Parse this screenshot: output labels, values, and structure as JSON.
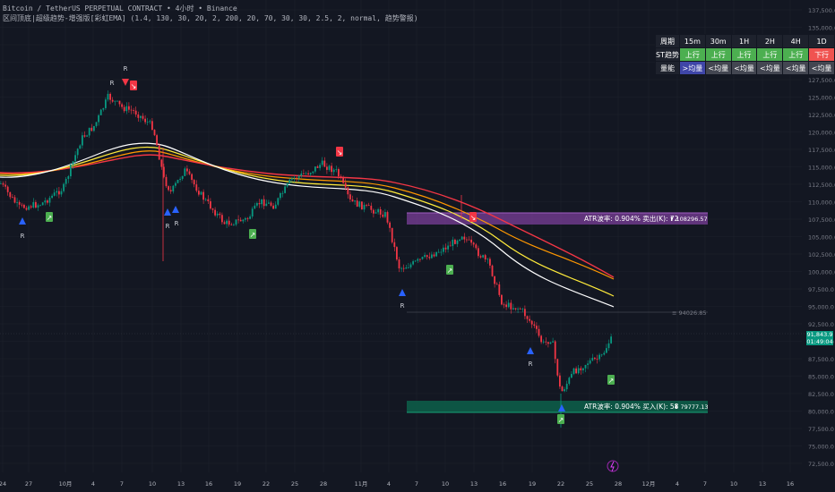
{
  "header": {
    "line1": "Bitcoin / TetherUS PERPETUAL CONTRACT • 4小时 • Binance",
    "line2": "区间顶底|超级趋势-增强版[彩虹EMA] (1.4, 130, 30, 20, 2, 200, 20, 70, 30, 30, 2.5, 2, normal, 趋势警报)"
  },
  "trend_table": {
    "header": [
      "周期",
      "15m",
      "30m",
      "1H",
      "2H",
      "4H",
      "1D"
    ],
    "st_label": "ST趋势",
    "st_values": [
      "上行",
      "上行",
      "上行",
      "上行",
      "上行",
      "下行"
    ],
    "vol_label": "量能",
    "vol_values": [
      ">均量",
      "<均量",
      "<均量",
      "<均量",
      "<均量",
      "<均量"
    ]
  },
  "zones": {
    "sell_text": "ATR波率: 0.904% 卖出(K): 72",
    "sell_price": "⬆ 108296.57",
    "buy_text": "ATR波率: 0.904% 买入(K): 58",
    "buy_price": "⬇ 79777.13",
    "mid_label": "≡ 94026.85"
  },
  "current_price": {
    "value": "91,843.9",
    "countdown": "01:49:04"
  },
  "y_axis": [
    "137,500.0",
    "135,000.0",
    "132,500.0",
    "130,000.0",
    "127,500.0",
    "125,000.0",
    "122,500.0",
    "120,000.0",
    "117,500.0",
    "115,000.0",
    "112,500.0",
    "110,000.0",
    "107,500.0",
    "105,000.0",
    "102,500.0",
    "100,000.0",
    "97,500.0",
    "95,000.0",
    "92,500.0",
    "90,000.0",
    "87,500.0",
    "85,000.0",
    "82,500.0",
    "80,000.0",
    "77,500.0",
    "75,000.0",
    "72,500.0"
  ],
  "x_axis": [
    "24",
    "27",
    "10月",
    "4",
    "7",
    "10",
    "13",
    "16",
    "19",
    "22",
    "25",
    "28",
    "11月",
    "4",
    "7",
    "10",
    "13",
    "16",
    "19",
    "22",
    "25",
    "28",
    "12月",
    "4",
    "7",
    "10",
    "13",
    "16"
  ],
  "markers": {
    "r_label": "R",
    "arrow_up": "↗",
    "arrow_down": "↘"
  },
  "colors": {
    "background": "#131722",
    "up_candle": "#089981",
    "down_candle": "#f23645",
    "ema_white": "#ffffff",
    "ema_yellow": "#ffeb3b",
    "ema_orange": "#ff9800",
    "ema_red": "#f23645",
    "sell_zone": "#7b3f99",
    "buy_zone": "#0d5c48"
  },
  "icons": {
    "flash": "flash-icon"
  }
}
